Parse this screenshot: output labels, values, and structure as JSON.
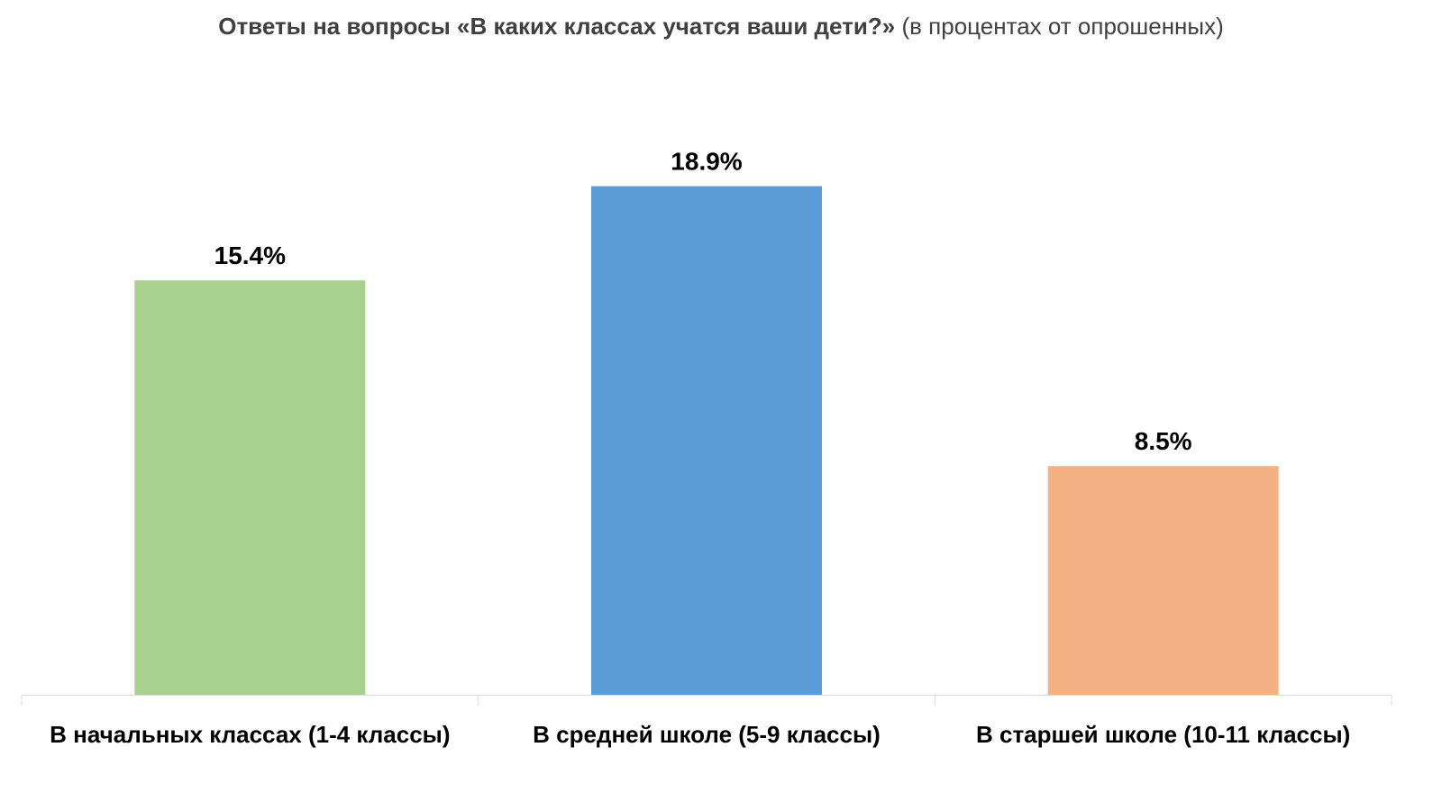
{
  "chart_data": {
    "type": "bar",
    "title": "Ответы на вопросы «В каких классах учатся ваши дети?»",
    "subtitle": "(в процентах от опрошенных)",
    "categories": [
      "В начальных классах (1-4 классы)",
      "В средней школе (5-9 классы)",
      "В старшей школе (10-11 классы)"
    ],
    "values": [
      15.4,
      18.9,
      8.5
    ],
    "data_labels": [
      "15.4%",
      "18.9%",
      "8.5%"
    ],
    "colors": [
      "#A9D18E",
      "#5B9BD5",
      "#F4B183"
    ],
    "ylim": [
      0,
      21.6
    ],
    "grid": false,
    "legend": "none"
  }
}
